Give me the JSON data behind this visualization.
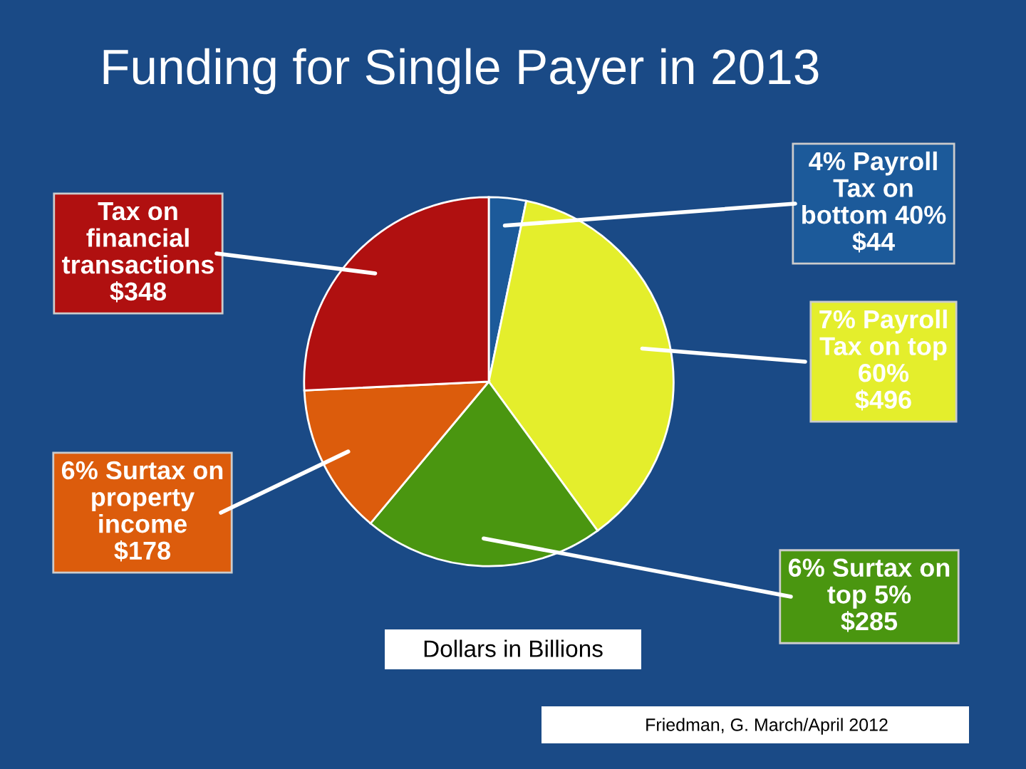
{
  "chart_data": {
    "type": "pie",
    "title": "Funding for Single Payer in 2013",
    "categories": [
      "4% Payroll\nTax on\nbottom 40%",
      "7% Payroll\nTax on top\n60%",
      "6% Surtax on\ntop 5%",
      "6% Surtax on\nproperty\nincome",
      "Tax on\nfinancial\ntransactions"
    ],
    "values": [
      44,
      496,
      285,
      178,
      348
    ],
    "value_labels": [
      "$44",
      "$496",
      "$285",
      "$178",
      "$348"
    ],
    "colors": [
      "#1c5a9a",
      "#e4ee2c",
      "#4a9610",
      "#dc5c0c",
      "#b01010"
    ],
    "annotations": [
      "Dollars in Billions",
      "Friedman, G. March/April 2012"
    ]
  }
}
